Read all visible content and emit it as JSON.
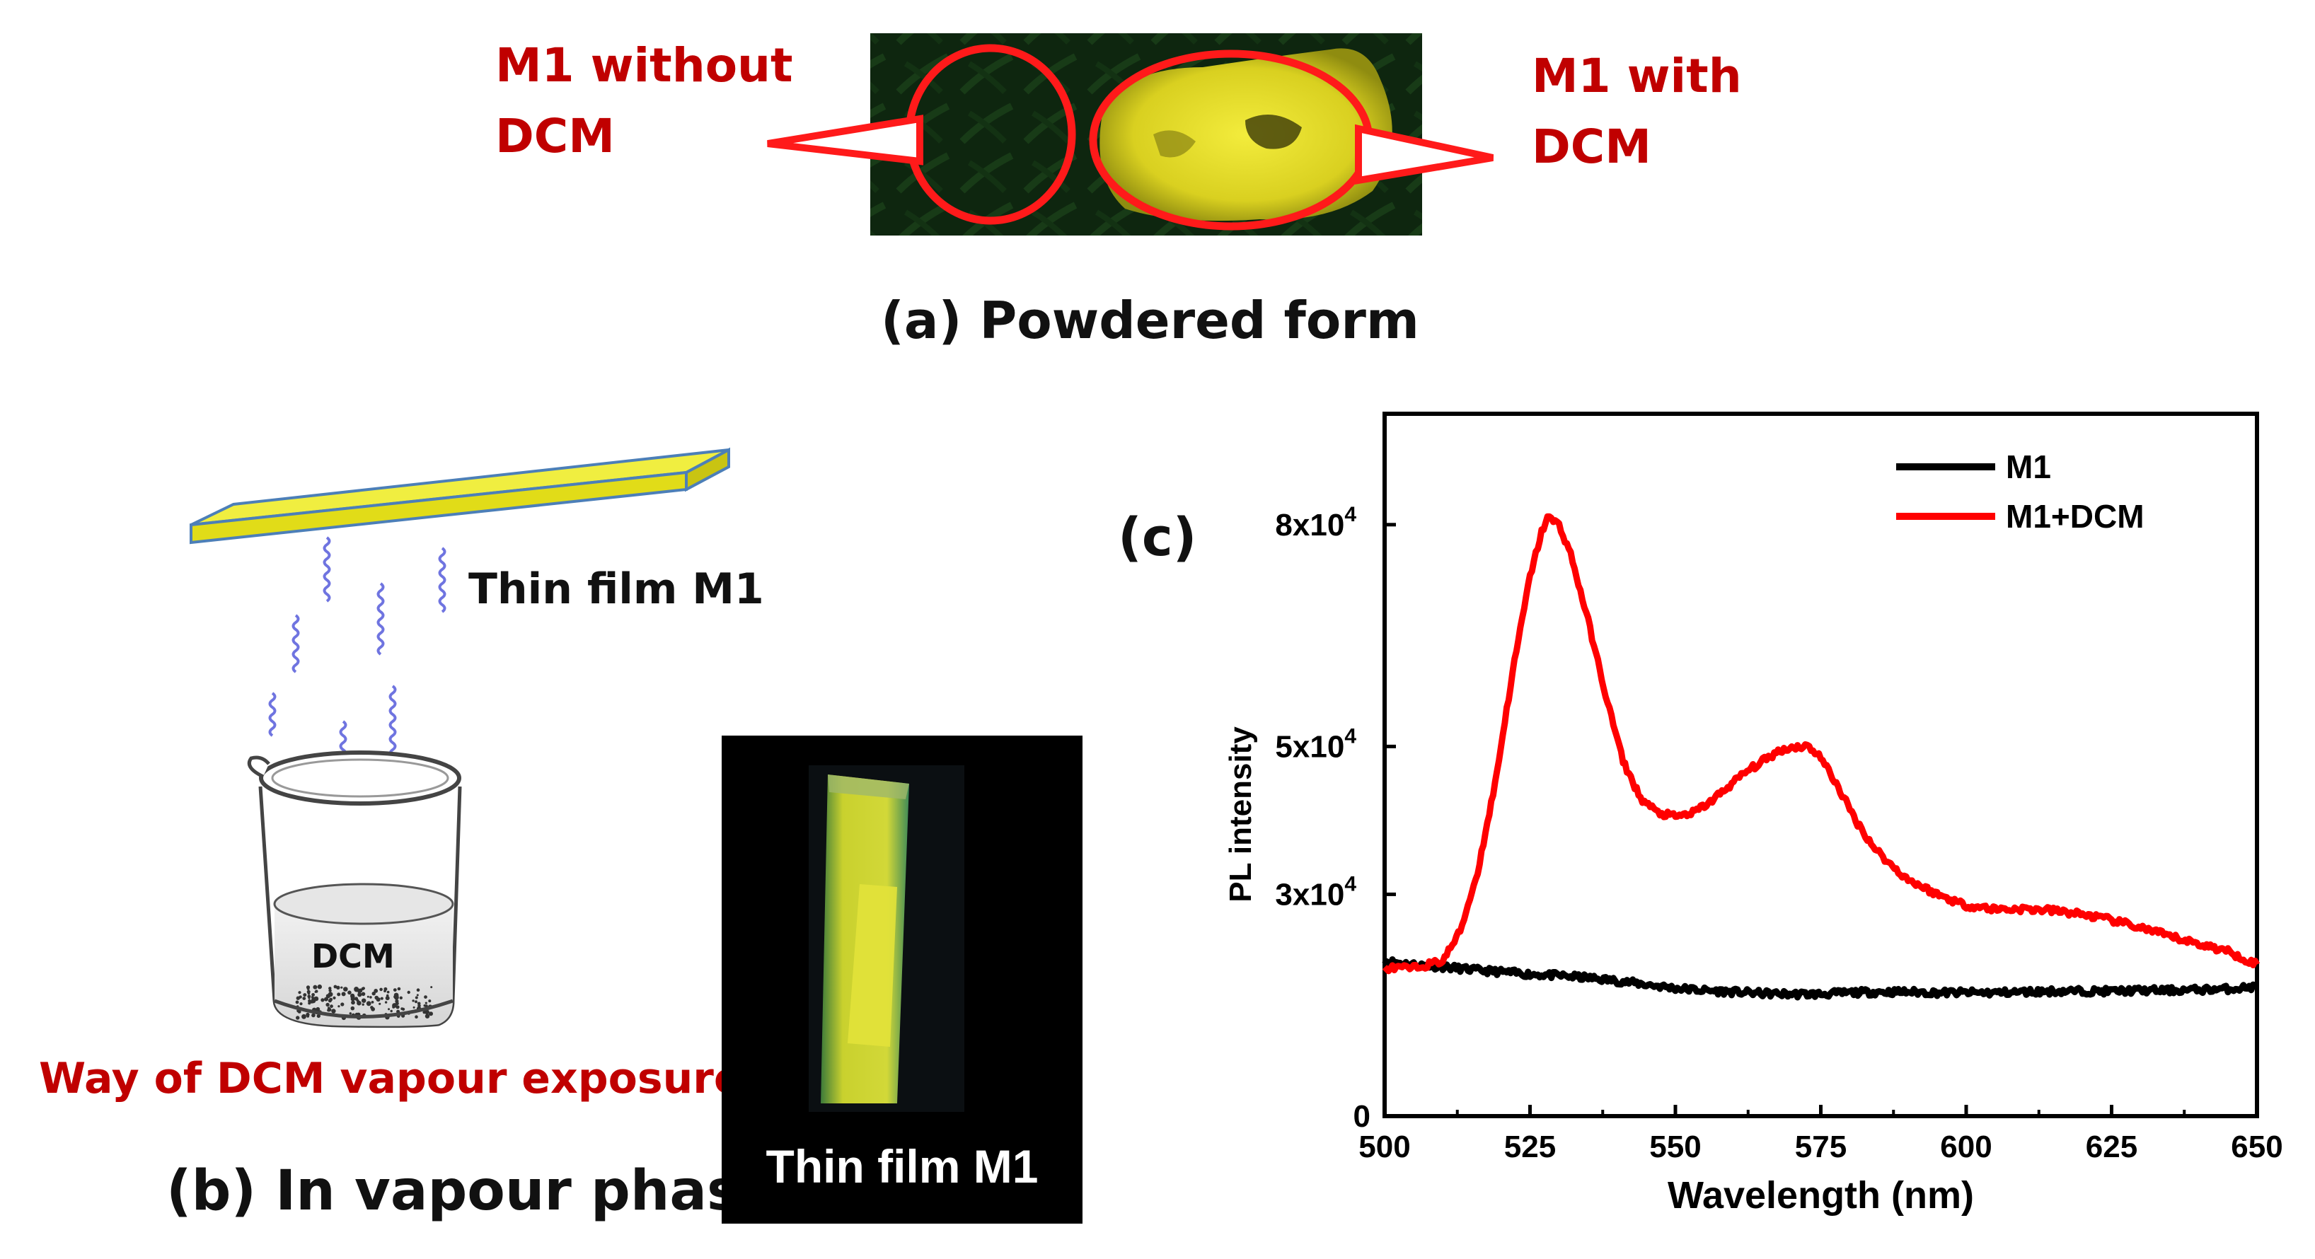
{
  "panel_a": {
    "label_without": [
      "M1 without",
      "DCM"
    ],
    "label_with": [
      "M1 with",
      "DCM"
    ],
    "caption": "(a) Powdered form"
  },
  "panel_b": {
    "film_label": "Thin film M1",
    "beaker_label": "DCM",
    "exposure_label": "Way of DCM vapour exposure",
    "caption": "(b) In vapour phase",
    "photo_label": "Thin film M1"
  },
  "panel_c": {
    "caption": "(c)"
  },
  "colors": {
    "red_label": "#c00000",
    "film_yellow": "#e8e200",
    "vapour": "#6f74e0",
    "series_m1": "#000000",
    "series_dcm": "#ff0000"
  },
  "chart_data": {
    "type": "line",
    "title": "",
    "xlabel": "Wavelength (nm)",
    "ylabel": "PL intensity",
    "xlim": [
      500,
      650
    ],
    "ylim": [
      0,
      95000
    ],
    "xticks": [
      500,
      525,
      550,
      575,
      600,
      625,
      650
    ],
    "yticks": [
      {
        "value": 0,
        "label": "0"
      },
      {
        "value": 30000,
        "label": "3x10",
        "exp": "4"
      },
      {
        "value": 50000,
        "label": "5x10",
        "exp": "4"
      },
      {
        "value": 80000,
        "label": "8x10",
        "exp": "4"
      }
    ],
    "legend_position": "top-right",
    "series": [
      {
        "name": "M1",
        "color": "#000000",
        "x": [
          500,
          505,
          510,
          515,
          520,
          525,
          530,
          535,
          540,
          545,
          550,
          555,
          560,
          565,
          570,
          575,
          580,
          585,
          590,
          595,
          600,
          605,
          610,
          615,
          620,
          625,
          630,
          635,
          640,
          645,
          650
        ],
        "y": [
          21000,
          20500,
          20200,
          19800,
          19500,
          19200,
          19000,
          18700,
          18300,
          17800,
          17300,
          17000,
          16800,
          16600,
          16500,
          16500,
          16700,
          16800,
          16800,
          16700,
          16700,
          16700,
          16800,
          16900,
          16900,
          16900,
          17000,
          17000,
          17100,
          17200,
          17500
        ]
      },
      {
        "name": "M1+DCM",
        "color": "#ff0000",
        "x": [
          500,
          505,
          510,
          513,
          516,
          519,
          522,
          525,
          527,
          528,
          530,
          532,
          535,
          538,
          541,
          544,
          547,
          550,
          553,
          556,
          559,
          562,
          565,
          568,
          571,
          573,
          575,
          578,
          581,
          584,
          587,
          590,
          595,
          600,
          605,
          610,
          615,
          620,
          625,
          630,
          635,
          640,
          645,
          650
        ],
        "y": [
          20000,
          20000,
          21000,
          25000,
          33000,
          45000,
          60000,
          73000,
          79000,
          81000,
          80000,
          76000,
          67000,
          57000,
          48000,
          43000,
          41000,
          40500,
          41000,
          42500,
          44500,
          46500,
          48000,
          49500,
          50000,
          50000,
          48500,
          44500,
          40000,
          36500,
          34000,
          32000,
          30000,
          28500,
          28000,
          28000,
          27800,
          27300,
          26500,
          25500,
          24300,
          23300,
          22300,
          20500
        ]
      }
    ]
  }
}
